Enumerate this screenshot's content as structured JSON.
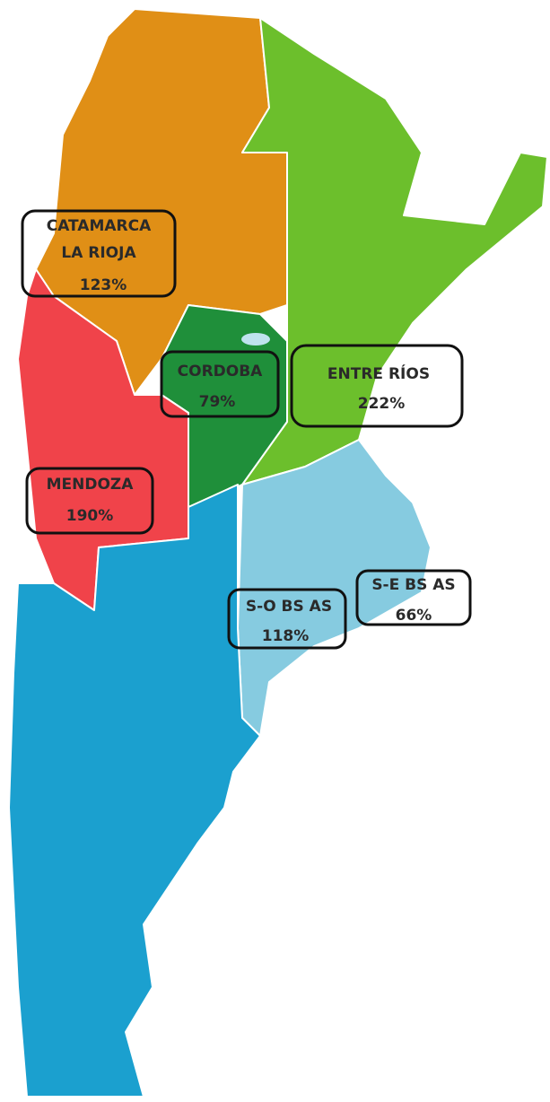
{
  "regions": [
    {
      "name": [
        "CATAMARCA",
        "LA RIOJA"
      ],
      "value": "123%"
    },
    {
      "name": [
        "CORDOBA"
      ],
      "value": "79%"
    },
    {
      "name": [
        "ENTRE RÍOS"
      ],
      "value": "222%"
    },
    {
      "name": [
        "MENDOZA"
      ],
      "value": "190%"
    },
    {
      "name": [
        "S-O BS AS"
      ],
      "value": "118%"
    },
    {
      "name": [
        "S-E BS AS"
      ],
      "value": "66%"
    }
  ]
}
